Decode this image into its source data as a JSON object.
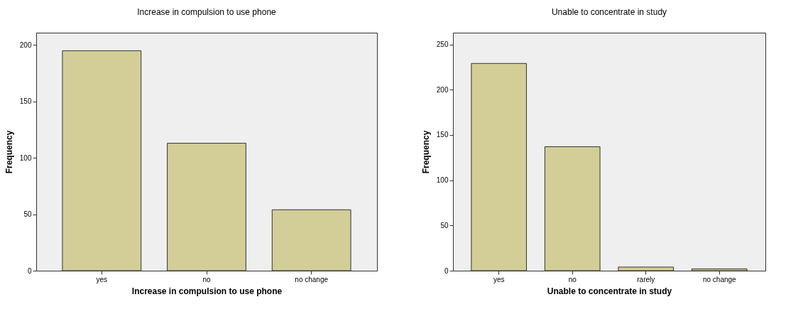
{
  "chart_data": [
    {
      "type": "bar",
      "title": "Increase in compulsion to use phone",
      "xlabel": "Increase in compulsion to use phone",
      "ylabel": "Frequency",
      "categories": [
        "yes",
        "no",
        "no change"
      ],
      "values": [
        195,
        113,
        54
      ],
      "color": "#d3ce97",
      "ylim": [
        0,
        211
      ],
      "yticks": [
        0,
        50,
        100,
        150,
        200
      ],
      "grid": false
    },
    {
      "type": "bar",
      "title": "Unable to concentrate in study",
      "xlabel": "Unable to concentrate in study",
      "ylabel": "Frequency",
      "categories": [
        "yes",
        "no",
        "rarely",
        "no change"
      ],
      "values": [
        229,
        137,
        4,
        2
      ],
      "color": "#d3ce97",
      "ylim": [
        0,
        263
      ],
      "yticks": [
        0,
        50,
        100,
        150,
        200,
        250
      ],
      "grid": false
    }
  ]
}
